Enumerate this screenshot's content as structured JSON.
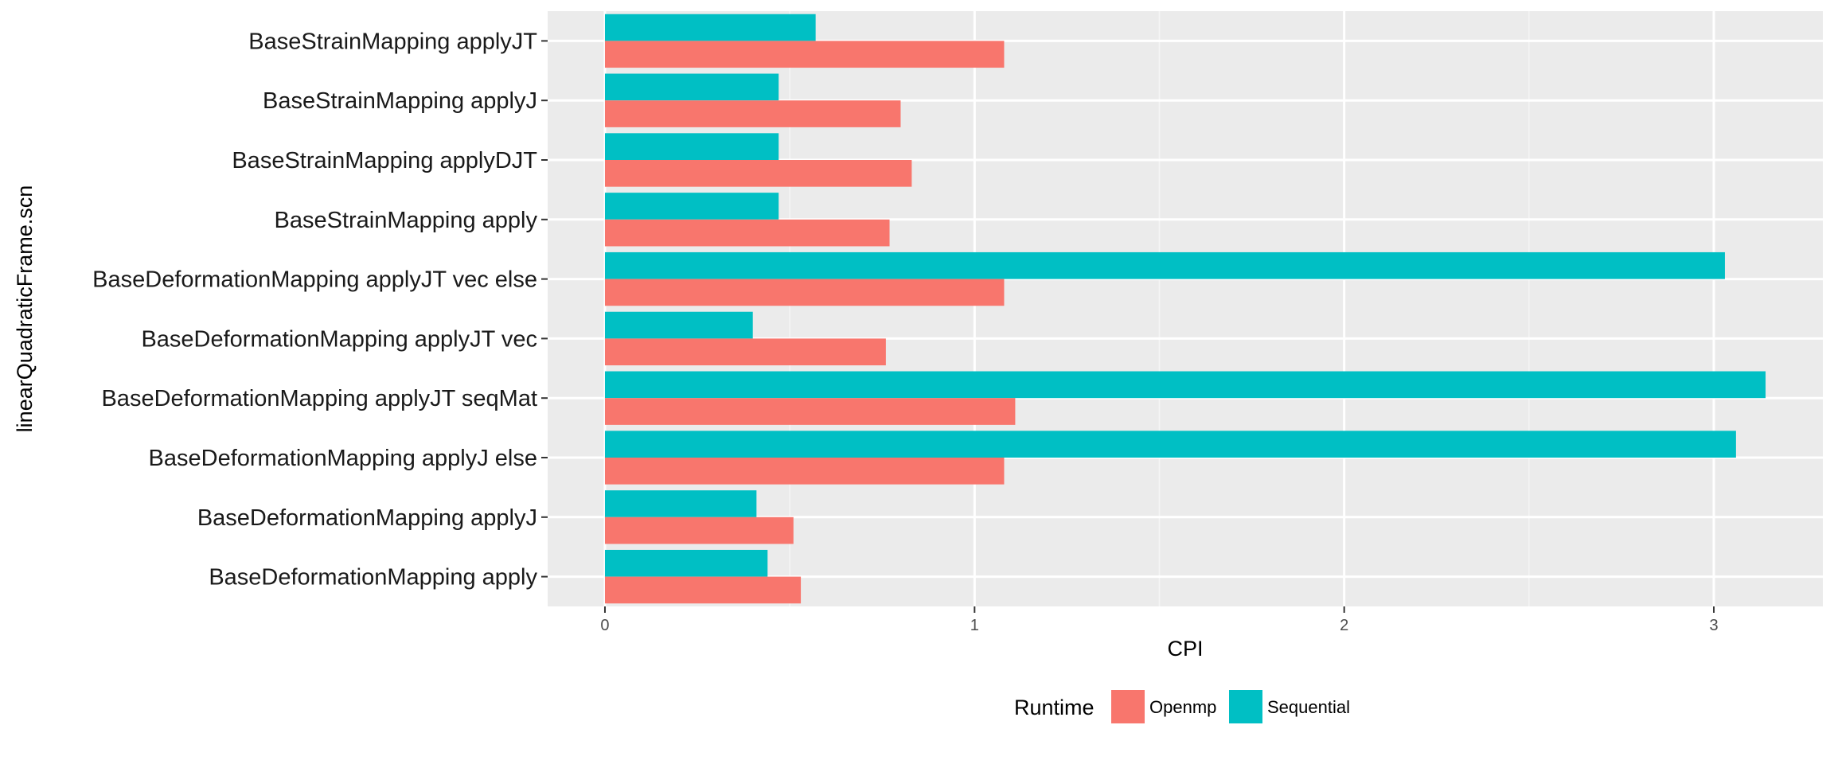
{
  "chart_data": {
    "type": "bar",
    "orientation": "horizontal",
    "xlabel": "CPI",
    "ylabel": "linearQuadraticFrame.scn",
    "xlim": [
      -0.155,
      3.295
    ],
    "x_ticks": [
      0,
      1,
      2,
      3
    ],
    "x_tick_labels": [
      "0",
      "1",
      "2",
      "3"
    ],
    "grid": true,
    "legend_position": "bottom",
    "legend_title": "Runtime",
    "categories": [
      "BaseStrainMapping applyJT",
      "BaseStrainMapping applyJ",
      "BaseStrainMapping applyDJT",
      "BaseStrainMapping apply",
      "BaseDeformationMapping applyJT vec else",
      "BaseDeformationMapping applyJT vec",
      "BaseDeformationMapping applyJT seqMat",
      "BaseDeformationMapping applyJ else",
      "BaseDeformationMapping applyJ",
      "BaseDeformationMapping apply"
    ],
    "series": [
      {
        "name": "Openmp",
        "color": "#F8766D",
        "values": [
          1.08,
          0.8,
          0.83,
          0.77,
          1.08,
          0.76,
          1.11,
          1.08,
          0.51,
          0.53
        ]
      },
      {
        "name": "Sequential",
        "color": "#00BFC4",
        "values": [
          0.57,
          0.47,
          0.47,
          0.47,
          3.03,
          0.4,
          3.14,
          3.06,
          0.41,
          0.44
        ]
      }
    ]
  }
}
